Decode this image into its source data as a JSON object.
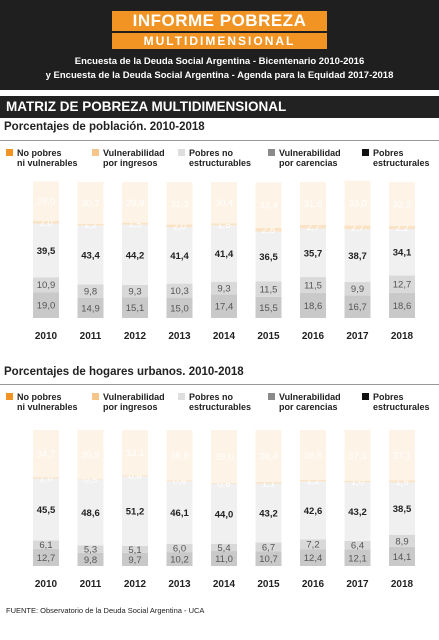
{
  "header": {
    "title": "INFORME POBREZA",
    "subtitle": "MULTIDIMENSIONAL",
    "line1": "Encuesta de la Deuda Social Argentina - Bicentenario 2010-2016",
    "line2": "y Encuesta de la Deuda Social Argentina - Agenda para la Equidad 2017-2018"
  },
  "main_title": "MATRIZ DE POBREZA MULTIDIMENSIONAL",
  "legend": [
    {
      "name": "No pobres ni vulnerables",
      "line1": "No pobres",
      "line2": "ni vulnerables",
      "color": "#f29423"
    },
    {
      "name": "Vulnerabilidad por ingresos",
      "line1": "Vulnerabilidad",
      "line2": "por ingresos",
      "color": "#f5c58a"
    },
    {
      "name": "Pobres no estructurables",
      "line1": "Pobres no",
      "line2": "estructurables",
      "color": "#dedede"
    },
    {
      "name": "Vulnerabilidad por carencias",
      "line1": "Vulnerabilidad",
      "line2": "por carencias",
      "color": "#8a8a8a"
    },
    {
      "name": "Pobres estructurales",
      "line1": "Pobres",
      "line2": "estructurales",
      "color": "#111111"
    }
  ],
  "colors": {
    "ingresos_bar": "#fae2c4",
    "no_pobres_bar": "#fdf3e6",
    "no_estructurables_bar": "#f0f0f0",
    "carencias_bar": "#d9d9d9",
    "estructurales_bar": "#c9c9c9",
    "accent": "#f29423"
  },
  "chart_data": [
    {
      "type": "bar",
      "title": "Porcentajes de población. 2010-2018",
      "categories": [
        "2010",
        "2011",
        "2012",
        "2013",
        "2014",
        "2015",
        "2016",
        "2017",
        "2018"
      ],
      "series": [
        {
          "name": "Pobres estructurales",
          "values": [
            19.0,
            14.9,
            15.1,
            15.0,
            17.4,
            15.5,
            18.6,
            16.7,
            18.6
          ]
        },
        {
          "name": "Vulnerabilidad por carencias",
          "values": [
            10.9,
            9.8,
            9.3,
            10.3,
            9.3,
            11.5,
            11.5,
            9.9,
            12.7
          ]
        },
        {
          "name": "Pobres no estructurables",
          "values": [
            39.5,
            43.4,
            44.2,
            41.4,
            41.4,
            36.5,
            35.7,
            38.7,
            34.1
          ]
        },
        {
          "name": "Vulnerabilidad por ingresos",
          "values": [
            2.0,
            1.2,
            1.5,
            2.0,
            1.5,
            2.8,
            2.7,
            2.7,
            2.2
          ]
        },
        {
          "name": "No pobres ni vulnerables",
          "values": [
            29.0,
            30.7,
            29.9,
            31.3,
            30.4,
            33.4,
            31.6,
            33.0,
            32.2
          ]
        }
      ],
      "ylim": [
        0,
        100
      ]
    },
    {
      "type": "bar",
      "title": "Porcentajes de hogares urbanos. 2010-2018",
      "categories": [
        "2010",
        "2011",
        "2012",
        "2013",
        "2014",
        "2015",
        "2016",
        "2017",
        "2018"
      ],
      "series": [
        {
          "name": "Pobres estructurales",
          "values": [
            12.7,
            9.8,
            9.7,
            10.2,
            11.0,
            10.7,
            12.4,
            12.1,
            14.1
          ]
        },
        {
          "name": "Vulnerabilidad por carencias",
          "values": [
            6.1,
            5.3,
            5.1,
            6.0,
            5.4,
            6.7,
            7.2,
            6.4,
            8.9
          ]
        },
        {
          "name": "Pobres no estructurables",
          "values": [
            45.5,
            48.6,
            51.2,
            46.1,
            44.0,
            43.2,
            42.6,
            43.2,
            38.5
          ]
        },
        {
          "name": "Vulnerabilidad por ingresos",
          "values": [
            1.0,
            0.5,
            0.8,
            0.8,
            0.6,
            1.1,
            1.2,
            1.0,
            1.5
          ]
        },
        {
          "name": "No pobres ni vulnerables",
          "values": [
            34.7,
            35.9,
            33.1,
            36.9,
            39.0,
            38.4,
            36.6,
            37.3,
            37.1
          ]
        }
      ],
      "ylim": [
        0,
        100
      ]
    }
  ],
  "footer": "FUENTE: Observatorio de la Deuda Social Argentina - UCA"
}
